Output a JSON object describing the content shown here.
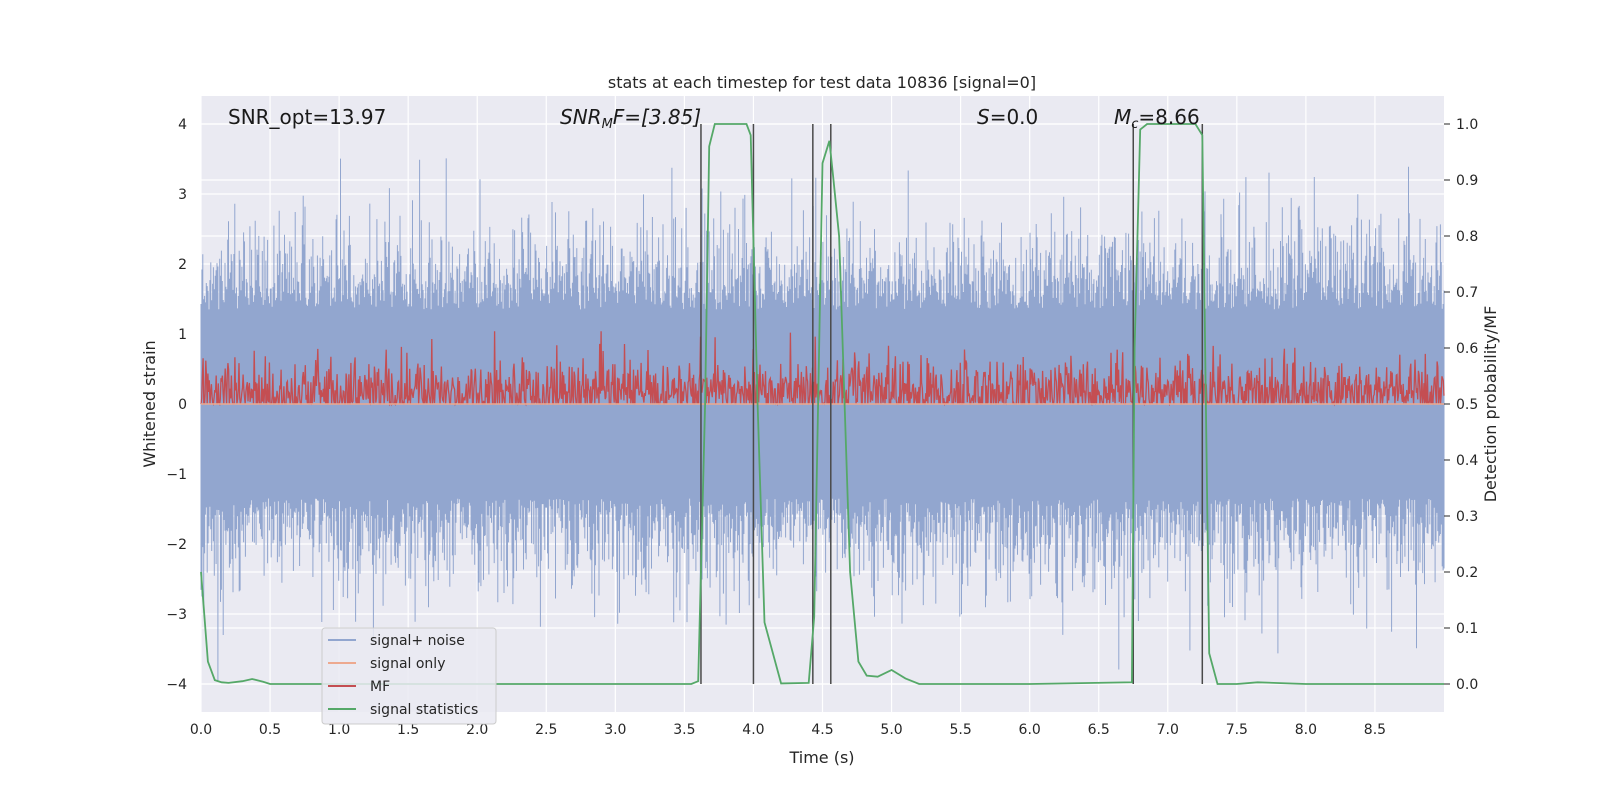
{
  "chart_data": {
    "type": "line",
    "title": "stats at each timestep for test data 10836 [signal=0]",
    "xlabel": "Time (s)",
    "ylabel": "Whitened strain",
    "y2label": "Detection probability/MF",
    "xlim": [
      0,
      9.0
    ],
    "ylim": [
      -4.4,
      4.4
    ],
    "y2lim": [
      -0.05,
      1.05
    ],
    "xticks": [
      "0.0",
      "0.5",
      "1.0",
      "1.5",
      "2.0",
      "2.5",
      "3.0",
      "3.5",
      "4.0",
      "4.5",
      "5.0",
      "5.5",
      "6.0",
      "6.5",
      "7.0",
      "7.5",
      "8.0",
      "8.5"
    ],
    "yticks": [
      "−4",
      "−3",
      "−2",
      "−1",
      "0",
      "1",
      "2",
      "3",
      "4"
    ],
    "y2ticks": [
      "0.0",
      "0.1",
      "0.2",
      "0.3",
      "0.4",
      "0.5",
      "0.6",
      "0.7",
      "0.8",
      "0.9",
      "1.0"
    ],
    "grid": true,
    "annotations": {
      "snr_opt": "SNR_opt=13.97",
      "snr_mf_sym": "SNR",
      "snr_mf_sub": "M",
      "snr_mf_rest": "F=[3.85]",
      "s_sym": "S",
      "s_rest": "=0.0",
      "mc_sym": "M",
      "mc_sub": "c",
      "mc_rest": "=8.66"
    },
    "legend": {
      "position": "lower-left",
      "entries": [
        {
          "label": "signal+ noise",
          "color": "#92a6cf"
        },
        {
          "label": "signal only",
          "color": "#eda98f"
        },
        {
          "label": "MF",
          "color": "#c44e52"
        },
        {
          "label": "signal statistics",
          "color": "#55a868"
        }
      ]
    },
    "detection_lines_x": [
      3.62,
      4.0,
      4.43,
      4.56,
      6.75,
      7.25
    ],
    "series": [
      {
        "name": "signal statistics",
        "color": "#55a868",
        "axis": "right",
        "x": [
          0.0,
          0.05,
          0.1,
          0.15,
          0.2,
          0.3,
          0.37,
          0.45,
          0.5,
          1.0,
          2.0,
          3.0,
          3.55,
          3.6,
          3.65,
          3.68,
          3.72,
          3.8,
          3.95,
          3.98,
          4.03,
          4.08,
          4.2,
          4.4,
          4.44,
          4.5,
          4.55,
          4.58,
          4.62,
          4.7,
          4.76,
          4.82,
          4.9,
          5.0,
          5.1,
          5.2,
          6.0,
          6.74,
          6.76,
          6.8,
          6.85,
          7.0,
          7.2,
          7.25,
          7.3,
          7.36,
          7.5,
          7.65,
          8.0,
          9.0
        ],
        "y": [
          0.2,
          0.04,
          0.007,
          0.003,
          0.002,
          0.005,
          0.009,
          0.004,
          0.0,
          0.0,
          0.0,
          0.0,
          0.0,
          0.005,
          0.5,
          0.96,
          1.0,
          1.0,
          1.0,
          0.98,
          0.5,
          0.11,
          0.001,
          0.002,
          0.12,
          0.93,
          0.97,
          0.9,
          0.8,
          0.2,
          0.04,
          0.015,
          0.013,
          0.025,
          0.01,
          0.0,
          0.0,
          0.003,
          0.6,
          0.99,
          1.0,
          1.0,
          1.0,
          0.98,
          0.055,
          0.0,
          0.0,
          0.003,
          0.0,
          0.0
        ]
      },
      {
        "name": "signal+ noise",
        "color": "#92a6cf",
        "axis": "left",
        "note_seeds": [
          3.0,
          3.1,
          2.9,
          2.8,
          3.2,
          3.5,
          3.6,
          3.3,
          4.0,
          3.4,
          3.7,
          3.9,
          3.5,
          3.2,
          3.0,
          3.6,
          3.8,
          3.3
        ]
      },
      {
        "name": "MF",
        "color": "#c44e52",
        "axis": "right",
        "mean": 0.52,
        "spread": 0.05
      },
      {
        "name": "signal only",
        "color": "#eda98f",
        "axis": "left",
        "x": [
          0.0,
          9.0
        ],
        "y": [
          0.0,
          0.0
        ]
      }
    ]
  }
}
